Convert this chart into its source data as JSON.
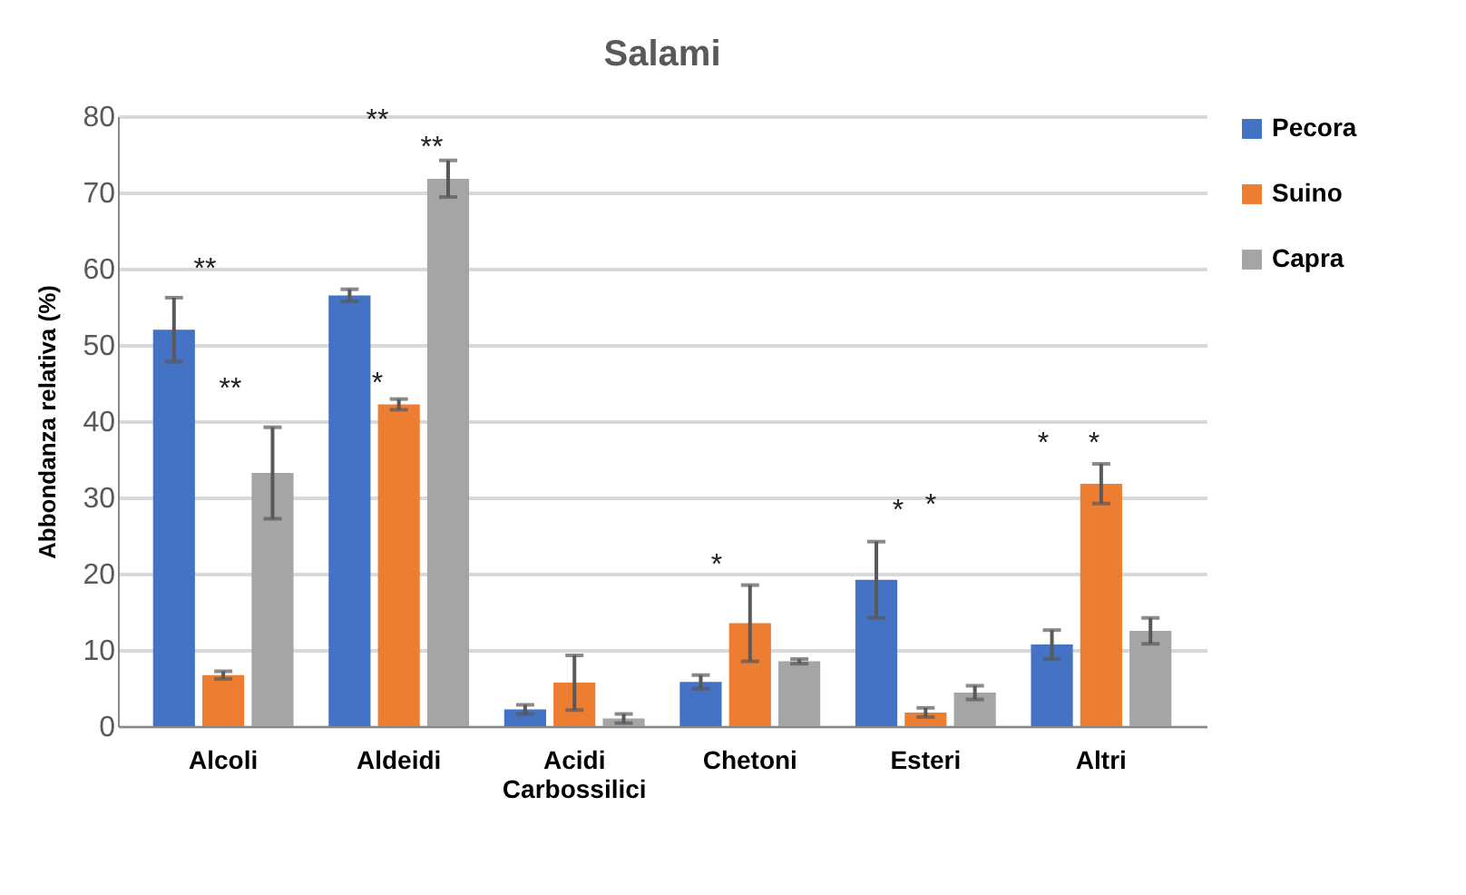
{
  "chart_data": {
    "type": "bar",
    "title": "Salami",
    "ylabel": "Abbondanza relativa (%)",
    "categories": [
      "Alcoli",
      "Aldeidi",
      "Acidi Carbossilici",
      "Chetoni",
      "Esteri",
      "Altri"
    ],
    "series": [
      {
        "name": "Pecora",
        "color": "#4472c4",
        "values": [
          52,
          56.5,
          2.2,
          5.8,
          19.2,
          10.7
        ],
        "errors": [
          4.2,
          0.8,
          0.6,
          0.9,
          5,
          1.9
        ]
      },
      {
        "name": "Suino",
        "color": "#ed7d31",
        "values": [
          6.7,
          42.2,
          5.7,
          13.5,
          1.8,
          31.8
        ],
        "errors": [
          0.5,
          0.7,
          3.6,
          5,
          0.6,
          2.6
        ]
      },
      {
        "name": "Capra",
        "color": "#a5a5a5",
        "values": [
          33.2,
          71.8,
          1,
          8.5,
          4.4,
          12.5
        ],
        "errors": [
          6,
          2.4,
          0.6,
          0.3,
          0.9,
          1.7
        ]
      }
    ],
    "ylim": [
      0,
      80
    ],
    "yticks": [
      0,
      10,
      20,
      30,
      40,
      50,
      60,
      70,
      80
    ],
    "grid": "y",
    "legend": "right",
    "annotations": [
      "**",
      "**",
      "**",
      "**",
      "*",
      "*",
      "*",
      "*",
      "*",
      "*"
    ]
  }
}
